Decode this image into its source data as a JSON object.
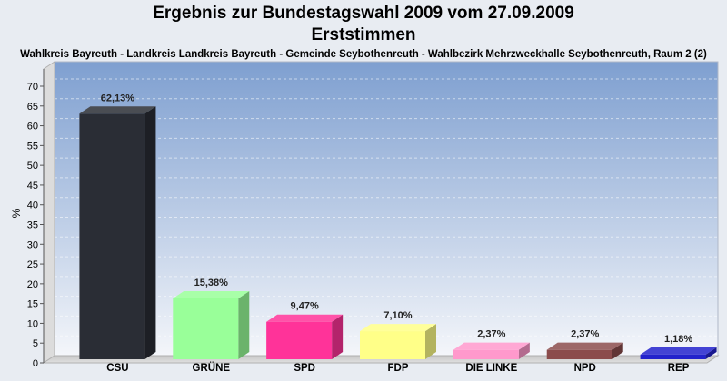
{
  "header": {
    "title_line1": "Ergebnis zur Bundestagswahl 2009 vom 27.09.2009",
    "title_line2": "Erststimmen",
    "subtitle": "Wahlkreis Bayreuth - Landkreis Landkreis Bayreuth - Gemeinde Seybothenreuth - Wahlbezirk Mehrzweckhalle Seybothenreuth, Raum 2 (2)"
  },
  "chart_data": {
    "type": "bar",
    "title": "Ergebnis zur Bundestagswahl 2009 vom 27.09.2009",
    "subtitle": "Erststimmen",
    "xlabel": "",
    "ylabel": "%",
    "ylim": [
      0,
      70
    ],
    "yticks": [
      "0",
      "5",
      "10",
      "15",
      "20",
      "25",
      "30",
      "35",
      "40",
      "45",
      "50",
      "55",
      "60",
      "65",
      "70"
    ],
    "grid": true,
    "categories": [
      "CSU",
      "GRÜNE",
      "SPD",
      "FDP",
      "DIE LINKE",
      "NPD",
      "REP"
    ],
    "values": [
      62.13,
      15.38,
      9.47,
      7.1,
      2.37,
      2.37,
      1.18
    ],
    "value_labels": [
      "62,13%",
      "15,38%",
      "9,47%",
      "7,10%",
      "2,37%",
      "2,37%",
      "1,18%"
    ],
    "colors": [
      "#2a2d35",
      "#99ff99",
      "#ff3399",
      "#ffff88",
      "#ff99cc",
      "#8b4c4c",
      "#2222cc"
    ]
  }
}
